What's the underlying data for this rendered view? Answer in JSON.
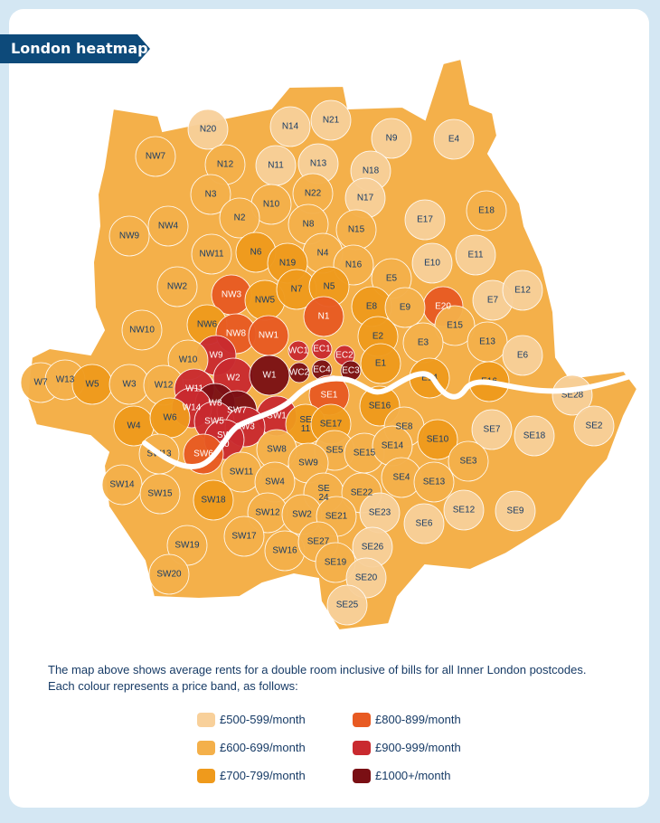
{
  "title": "London heatmap",
  "caption": [
    "The map above shows average rents for a double room inclusive of bills for all Inner London postcodes.",
    "Each colour represents a price band, as follows:"
  ],
  "legend": [
    {
      "label": "£500-599/month",
      "color": "#f8d09a"
    },
    {
      "label": "£600-699/month",
      "color": "#f4b04a"
    },
    {
      "label": "£700-799/month",
      "color": "#ef9a1c"
    },
    {
      "label": "£800-899/month",
      "color": "#e85a22"
    },
    {
      "label": "£900-999/month",
      "color": "#c92a2f"
    },
    {
      "label": "£1000+/month",
      "color": "#7a0f14"
    }
  ],
  "districts": [
    {
      "code": "N20",
      "band": 0
    },
    {
      "code": "N14",
      "band": 0
    },
    {
      "code": "N21",
      "band": 0
    },
    {
      "code": "N9",
      "band": 0
    },
    {
      "code": "E4",
      "band": 0
    },
    {
      "code": "NW7",
      "band": 1
    },
    {
      "code": "N12",
      "band": 1
    },
    {
      "code": "N11",
      "band": 0
    },
    {
      "code": "N13",
      "band": 0
    },
    {
      "code": "N18",
      "band": 0
    },
    {
      "code": "N3",
      "band": 1
    },
    {
      "code": "N10",
      "band": 1
    },
    {
      "code": "N22",
      "band": 1
    },
    {
      "code": "N17",
      "band": 0
    },
    {
      "code": "E18",
      "band": 1
    },
    {
      "code": "NW4",
      "band": 1
    },
    {
      "code": "N2",
      "band": 1
    },
    {
      "code": "N8",
      "band": 1
    },
    {
      "code": "N15",
      "band": 1
    },
    {
      "code": "E17",
      "band": 0
    },
    {
      "code": "NW9",
      "band": 1
    },
    {
      "code": "NW11",
      "band": 1
    },
    {
      "code": "N6",
      "band": 2
    },
    {
      "code": "N4",
      "band": 1
    },
    {
      "code": "E11",
      "band": 0
    },
    {
      "code": "N19",
      "band": 2
    },
    {
      "code": "N16",
      "band": 1
    },
    {
      "code": "E10",
      "band": 0
    },
    {
      "code": "NW2",
      "band": 1
    },
    {
      "code": "NW3",
      "band": 3
    },
    {
      "code": "NW5",
      "band": 2
    },
    {
      "code": "N7",
      "band": 2
    },
    {
      "code": "N5",
      "band": 2
    },
    {
      "code": "E5",
      "band": 1
    },
    {
      "code": "E7",
      "band": 0
    },
    {
      "code": "E12",
      "band": 0
    },
    {
      "code": "E20",
      "band": 3
    },
    {
      "code": "NW6",
      "band": 2
    },
    {
      "code": "N1",
      "band": 3
    },
    {
      "code": "E8",
      "band": 2
    },
    {
      "code": "E9",
      "band": 1
    },
    {
      "code": "E15",
      "band": 1
    },
    {
      "code": "NW10",
      "band": 1
    },
    {
      "code": "NW8",
      "band": 3
    },
    {
      "code": "NW1",
      "band": 3
    },
    {
      "code": "E2",
      "band": 2
    },
    {
      "code": "E3",
      "band": 1
    },
    {
      "code": "E13",
      "band": 1
    },
    {
      "code": "E6",
      "band": 0
    },
    {
      "code": "W9",
      "band": 4
    },
    {
      "code": "WC1",
      "band": 4
    },
    {
      "code": "EC1",
      "band": 4
    },
    {
      "code": "EC2",
      "band": 4
    },
    {
      "code": "E1",
      "band": 2
    },
    {
      "code": "W7",
      "band": 1
    },
    {
      "code": "W13",
      "band": 1
    },
    {
      "code": "W5",
      "band": 2
    },
    {
      "code": "W3",
      "band": 1
    },
    {
      "code": "W10",
      "band": 1
    },
    {
      "code": "W2",
      "band": 4
    },
    {
      "code": "W1",
      "band": 5
    },
    {
      "code": "WC2",
      "band": 5
    },
    {
      "code": "EC4",
      "band": 5
    },
    {
      "code": "EC3",
      "band": 5
    },
    {
      "code": "E14",
      "band": 2
    },
    {
      "code": "E16",
      "band": 2
    },
    {
      "code": "SE28",
      "band": 0
    },
    {
      "code": "W12",
      "band": 1
    },
    {
      "code": "W11",
      "band": 4
    },
    {
      "code": "W8",
      "band": 5
    },
    {
      "code": "SE1",
      "band": 3
    },
    {
      "code": "SE16",
      "band": 2
    },
    {
      "code": "SE2",
      "band": 0
    },
    {
      "code": "W14",
      "band": 4
    },
    {
      "code": "SW7",
      "band": 5
    },
    {
      "code": "SW1",
      "band": 4
    },
    {
      "code": "W4",
      "band": 2
    },
    {
      "code": "W6",
      "band": 2
    },
    {
      "code": "SW5",
      "band": 4
    },
    {
      "code": "SW3",
      "band": 4
    },
    {
      "code": "SE11",
      "band": 2
    },
    {
      "code": "SE17",
      "band": 2
    },
    {
      "code": "SE8",
      "band": 1
    },
    {
      "code": "SE7",
      "band": 0
    },
    {
      "code": "SE18",
      "band": 0
    },
    {
      "code": "SW10",
      "band": 4
    },
    {
      "code": "SE10",
      "band": 2
    },
    {
      "code": "SW13",
      "band": 1
    },
    {
      "code": "SW6",
      "band": 3
    },
    {
      "code": "SW8",
      "band": 1
    },
    {
      "code": "SE5",
      "band": 1
    },
    {
      "code": "SE15",
      "band": 1
    },
    {
      "code": "SE14",
      "band": 1
    },
    {
      "code": "SE3",
      "band": 1
    },
    {
      "code": "SW14",
      "band": 1
    },
    {
      "code": "SW11",
      "band": 1
    },
    {
      "code": "SW9",
      "band": 1
    },
    {
      "code": "SE4",
      "band": 1
    },
    {
      "code": "SE13",
      "band": 1
    },
    {
      "code": "SW15",
      "band": 1
    },
    {
      "code": "SW4",
      "band": 1
    },
    {
      "code": "SE24",
      "band": 1
    },
    {
      "code": "SE22",
      "band": 1
    },
    {
      "code": "SW18",
      "band": 2
    },
    {
      "code": "SE12",
      "band": 0
    },
    {
      "code": "SE9",
      "band": 0
    },
    {
      "code": "SW12",
      "band": 1
    },
    {
      "code": "SW2",
      "band": 1
    },
    {
      "code": "SE21",
      "band": 1
    },
    {
      "code": "SE23",
      "band": 0
    },
    {
      "code": "SE6",
      "band": 0
    },
    {
      "code": "SW17",
      "band": 1
    },
    {
      "code": "SW19",
      "band": 1
    },
    {
      "code": "SW16",
      "band": 1
    },
    {
      "code": "SE27",
      "band": 1
    },
    {
      "code": "SE26",
      "band": 0
    },
    {
      "code": "SE19",
      "band": 1
    },
    {
      "code": "SE20",
      "band": 0
    },
    {
      "code": "SW20",
      "band": 1
    },
    {
      "code": "SE25",
      "band": 0
    }
  ],
  "map_label_color": "#173b66"
}
